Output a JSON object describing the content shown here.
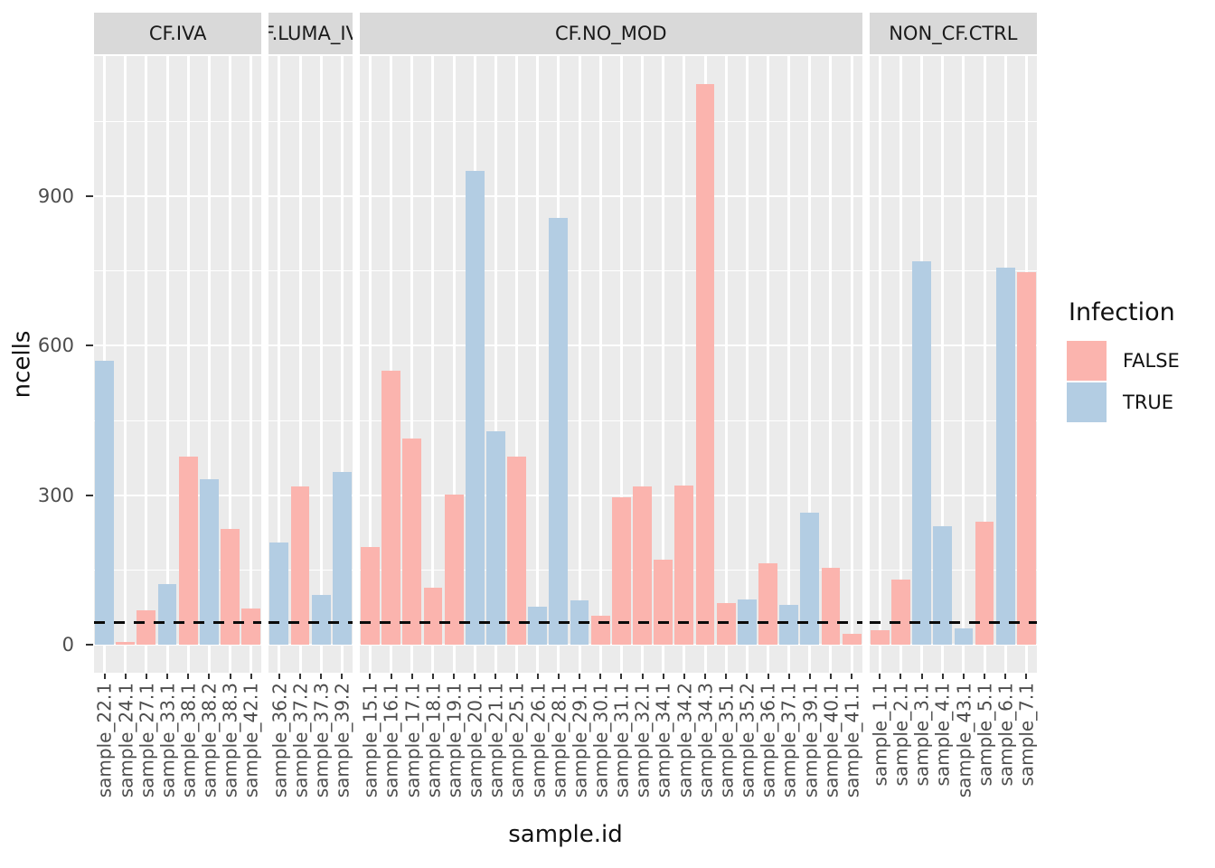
{
  "axes": {
    "y_title": "ncells",
    "x_title": "sample.id",
    "y_major_ticks": [
      0,
      300,
      600,
      900
    ],
    "y_minor_ticks": [
      150,
      450,
      750,
      1050
    ],
    "y_panel_range": [
      -56,
      1181
    ]
  },
  "legend": {
    "title": "Infection",
    "entries": [
      {
        "label": "FALSE",
        "color": "#FBB4AE"
      },
      {
        "label": "TRUE",
        "color": "#B3CDE3"
      }
    ]
  },
  "threshold": {
    "value": 45,
    "style": "dashed",
    "color": "#0a0a0a"
  },
  "colors": {
    "panel_background": "#EBEBEB",
    "strip_background": "#D9D9D9",
    "gridline": "#FFFFFF",
    "axis_text": "#4D4D4D"
  },
  "chart_data": {
    "type": "bar",
    "title": "",
    "xlabel": "sample.id",
    "ylabel": "ncells",
    "ylim": [
      0,
      1181
    ],
    "yticks": [
      0,
      300,
      600,
      900
    ],
    "legend_position": "right",
    "grid": "white major+minor on gray panels",
    "threshold_line_y": 45,
    "facets": [
      {
        "label": "CF.IVA",
        "samples": [
          {
            "id": "sample_22.1",
            "infection": true,
            "ncells": 570
          },
          {
            "id": "sample_24.1",
            "infection": false,
            "ncells": 5
          },
          {
            "id": "sample_27.1",
            "infection": false,
            "ncells": 70
          },
          {
            "id": "sample_33.1",
            "infection": true,
            "ncells": 122
          },
          {
            "id": "sample_38.1",
            "infection": false,
            "ncells": 377
          },
          {
            "id": "sample_38.2",
            "infection": true,
            "ncells": 332
          },
          {
            "id": "sample_38.3",
            "infection": false,
            "ncells": 232
          },
          {
            "id": "sample_42.1",
            "infection": false,
            "ncells": 73
          }
        ]
      },
      {
        "label": "CF.LUMA_IVA",
        "samples": [
          {
            "id": "sample_36.2",
            "infection": true,
            "ncells": 205
          },
          {
            "id": "sample_37.2",
            "infection": false,
            "ncells": 317
          },
          {
            "id": "sample_37.3",
            "infection": true,
            "ncells": 100
          },
          {
            "id": "sample_39.2",
            "infection": true,
            "ncells": 346
          }
        ]
      },
      {
        "label": "CF.NO_MOD",
        "samples": [
          {
            "id": "sample_15.1",
            "infection": false,
            "ncells": 197
          },
          {
            "id": "sample_16.1",
            "infection": false,
            "ncells": 549
          },
          {
            "id": "sample_17.1",
            "infection": false,
            "ncells": 414
          },
          {
            "id": "sample_18.1",
            "infection": false,
            "ncells": 115
          },
          {
            "id": "sample_19.1",
            "infection": false,
            "ncells": 301
          },
          {
            "id": "sample_20.1",
            "infection": true,
            "ncells": 950
          },
          {
            "id": "sample_21.1",
            "infection": true,
            "ncells": 428
          },
          {
            "id": "sample_25.1",
            "infection": false,
            "ncells": 377
          },
          {
            "id": "sample_26.1",
            "infection": true,
            "ncells": 77
          },
          {
            "id": "sample_28.1",
            "infection": true,
            "ncells": 856
          },
          {
            "id": "sample_29.1",
            "infection": true,
            "ncells": 90
          },
          {
            "id": "sample_30.1",
            "infection": false,
            "ncells": 58
          },
          {
            "id": "sample_31.1",
            "infection": false,
            "ncells": 296
          },
          {
            "id": "sample_32.1",
            "infection": false,
            "ncells": 317
          },
          {
            "id": "sample_34.1",
            "infection": false,
            "ncells": 170
          },
          {
            "id": "sample_34.2",
            "infection": false,
            "ncells": 320
          },
          {
            "id": "sample_34.3",
            "infection": false,
            "ncells": 1125
          },
          {
            "id": "sample_35.1",
            "infection": false,
            "ncells": 84
          },
          {
            "id": "sample_35.2",
            "infection": true,
            "ncells": 91
          },
          {
            "id": "sample_36.1",
            "infection": false,
            "ncells": 163
          },
          {
            "id": "sample_37.1",
            "infection": true,
            "ncells": 80
          },
          {
            "id": "sample_39.1",
            "infection": true,
            "ncells": 265
          },
          {
            "id": "sample_40.1",
            "infection": false,
            "ncells": 155
          },
          {
            "id": "sample_41.1",
            "infection": false,
            "ncells": 22
          }
        ]
      },
      {
        "label": "NON_CF.CTRL",
        "samples": [
          {
            "id": "sample_1.1",
            "infection": false,
            "ncells": 30
          },
          {
            "id": "sample_2.1",
            "infection": false,
            "ncells": 130
          },
          {
            "id": "sample_3.1",
            "infection": true,
            "ncells": 770
          },
          {
            "id": "sample_4.1",
            "infection": true,
            "ncells": 237
          },
          {
            "id": "sample_43.1",
            "infection": true,
            "ncells": 33
          },
          {
            "id": "sample_5.1",
            "infection": false,
            "ncells": 247
          },
          {
            "id": "sample_6.1",
            "infection": true,
            "ncells": 757
          },
          {
            "id": "sample_7.1",
            "infection": false,
            "ncells": 748
          }
        ]
      }
    ]
  }
}
